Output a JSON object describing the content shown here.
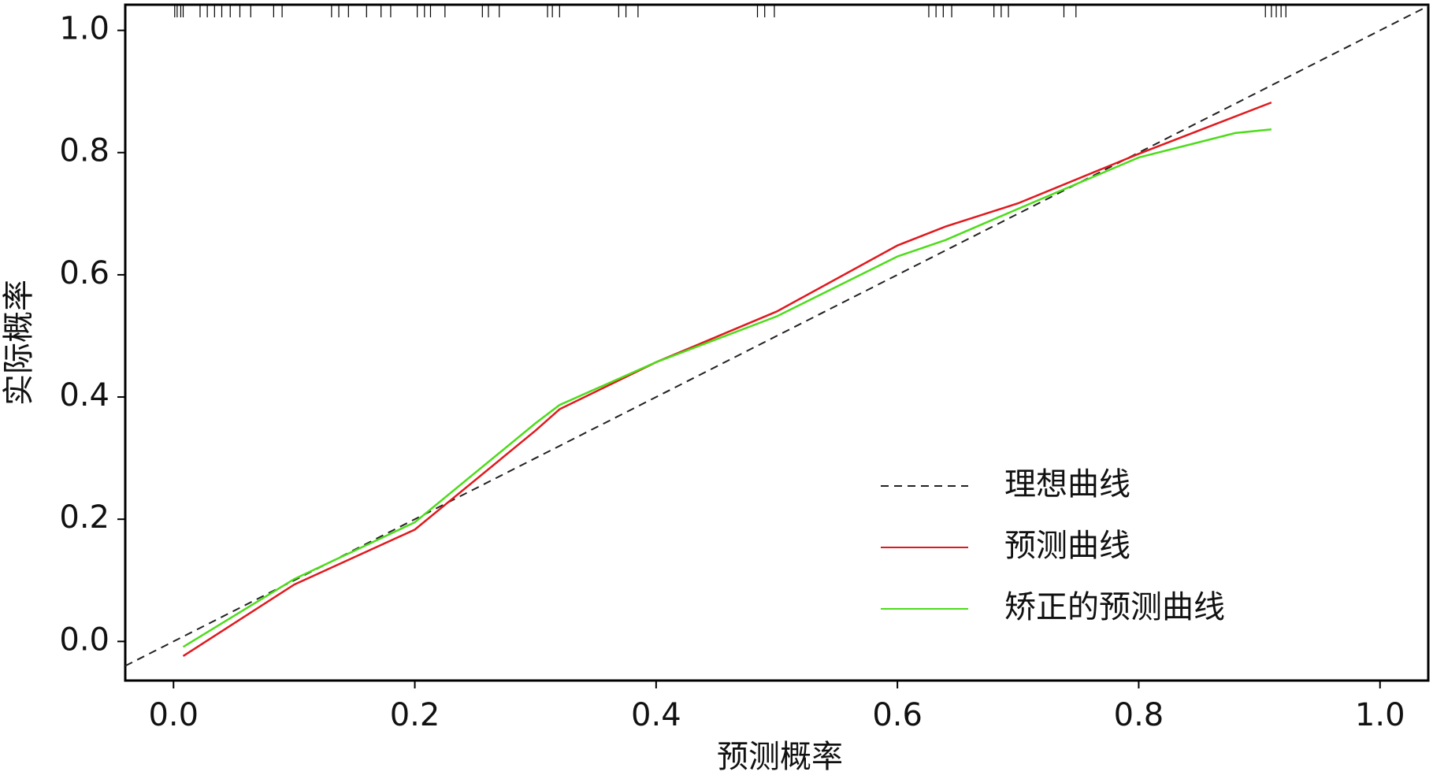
{
  "chart_data": {
    "type": "line",
    "xlabel": "预测概率",
    "ylabel": "实际概率",
    "xlim": [
      -0.04,
      1.04
    ],
    "ylim": [
      -0.064,
      1.042
    ],
    "xticks": [
      {
        "value": 0,
        "label": "0.0"
      },
      {
        "value": 0.2,
        "label": "0.2"
      },
      {
        "value": 0.4,
        "label": "0.4"
      },
      {
        "value": 0.6,
        "label": "0.6"
      },
      {
        "value": 0.8,
        "label": "0.8"
      },
      {
        "value": 1,
        "label": "1.0"
      }
    ],
    "yticks": [
      {
        "value": 0,
        "label": "0.0"
      },
      {
        "value": 0.2,
        "label": "0.2"
      },
      {
        "value": 0.4,
        "label": "0.4"
      },
      {
        "value": 0.6,
        "label": "0.6"
      },
      {
        "value": 0.8,
        "label": "0.8"
      },
      {
        "value": 1,
        "label": "1.0"
      }
    ],
    "series": [
      {
        "name": "理想曲线",
        "color": "#222222",
        "dash": true,
        "x": [
          -0.04,
          1.04
        ],
        "values": [
          -0.04,
          1.04
        ]
      },
      {
        "name": "预测曲线",
        "color": "#e0191e",
        "x": [
          0.008,
          0.1,
          0.2,
          0.3,
          0.32,
          0.4,
          0.5,
          0.6,
          0.64,
          0.7,
          0.8,
          0.91
        ],
        "values": [
          -0.024,
          0.093,
          0.183,
          0.345,
          0.38,
          0.457,
          0.54,
          0.648,
          0.679,
          0.717,
          0.798,
          0.882
        ]
      },
      {
        "name": "矫正的预测曲线",
        "color": "#4ddc1a",
        "x": [
          0.008,
          0.1,
          0.2,
          0.3,
          0.32,
          0.4,
          0.5,
          0.6,
          0.64,
          0.7,
          0.8,
          0.88,
          0.91
        ],
        "values": [
          -0.009,
          0.102,
          0.195,
          0.357,
          0.387,
          0.457,
          0.532,
          0.63,
          0.657,
          0.708,
          0.792,
          0.832,
          0.838
        ]
      }
    ],
    "rug": [
      0.001,
      0.003,
      0.006,
      0.008,
      0.022,
      0.028,
      0.034,
      0.04,
      0.047,
      0.055,
      0.064,
      0.083,
      0.09,
      0.131,
      0.137,
      0.145,
      0.16,
      0.172,
      0.18,
      0.202,
      0.208,
      0.213,
      0.225,
      0.256,
      0.261,
      0.27,
      0.31,
      0.314,
      0.32,
      0.369,
      0.375,
      0.385,
      0.484,
      0.49,
      0.498,
      0.626,
      0.632,
      0.638,
      0.645,
      0.68,
      0.686,
      0.692,
      0.738,
      0.748,
      0.905,
      0.91,
      0.914,
      0.918,
      0.922
    ]
  }
}
